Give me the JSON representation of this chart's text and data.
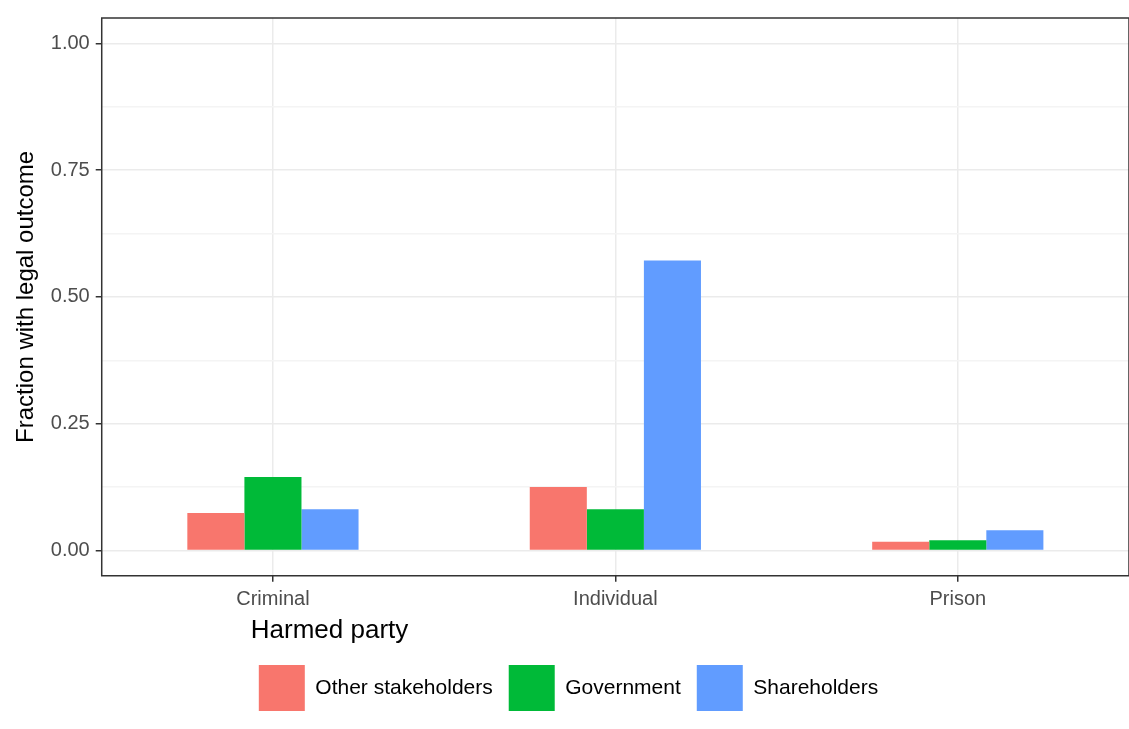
{
  "chart_data": {
    "type": "bar",
    "ylabel": "Fraction with legal outcome",
    "legend_title": "Harmed party",
    "categories": [
      "Criminal",
      "Individual",
      "Prison"
    ],
    "series": [
      {
        "name": "Other stakeholders",
        "color": "#f8766d",
        "values": [
          0.074,
          0.125,
          0.017
        ]
      },
      {
        "name": "Government",
        "color": "#00ba38",
        "values": [
          0.145,
          0.081,
          0.02
        ]
      },
      {
        "name": "Shareholders",
        "color": "#619cff",
        "values": [
          0.081,
          0.572,
          0.04
        ]
      }
    ],
    "ylim": [
      -0.05,
      1.05
    ],
    "yticks": [
      {
        "value": 0,
        "label": "0.00"
      },
      {
        "value": 0.125,
        "label": null
      },
      {
        "value": 0.25,
        "label": "0.25"
      },
      {
        "value": 0.375,
        "label": null
      },
      {
        "value": 0.5,
        "label": "0.50"
      },
      {
        "value": 0.625,
        "label": null
      },
      {
        "value": 0.75,
        "label": "0.75"
      },
      {
        "value": 0.875,
        "label": null
      },
      {
        "value": 1,
        "label": "1.00"
      }
    ],
    "grid": true,
    "legend": "bottom"
  }
}
